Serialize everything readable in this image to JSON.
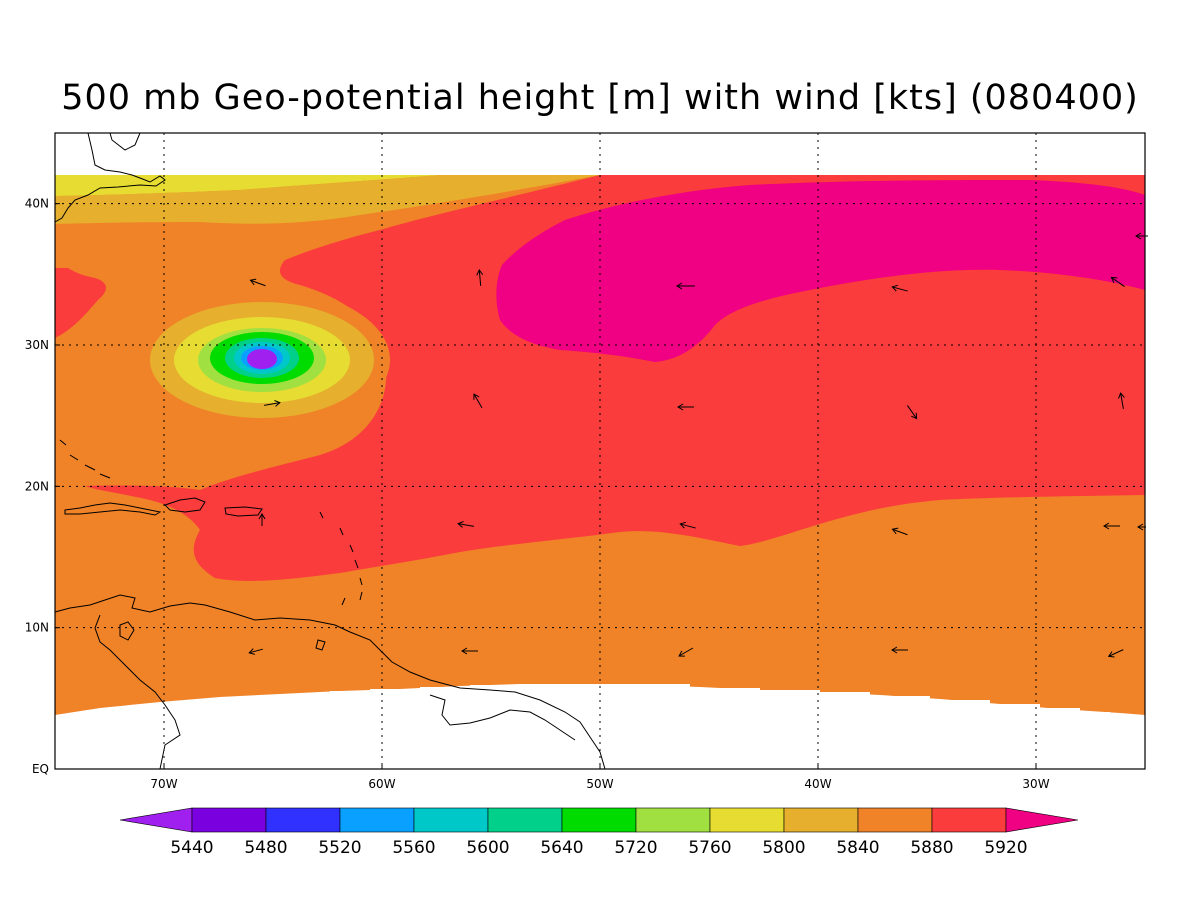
{
  "title": "500 mb Geo-potential height [m] with wind [kts] (080400)",
  "map": {
    "lat_labels": [
      "40N",
      "30N",
      "20N",
      "10N",
      "EQ"
    ],
    "lon_labels": [
      "70W",
      "60W",
      "50W",
      "40W",
      "30W"
    ],
    "lat_range": [
      0,
      45
    ],
    "lon_range": [
      -75,
      -25
    ]
  },
  "colorbar": {
    "levels": [
      "5440",
      "5480",
      "5520",
      "5560",
      "5600",
      "5640",
      "5720",
      "5760",
      "5800",
      "5840",
      "5880",
      "5920"
    ],
    "colors": [
      "#a020f0",
      "#7a00e0",
      "#3030ff",
      "#0aa0ff",
      "#00c8c8",
      "#00d08a",
      "#00dc00",
      "#a0e040",
      "#e6dc32",
      "#e6af2d",
      "#f08228",
      "#fa3c3c",
      "#f00082"
    ]
  },
  "fill_colors": {
    "c5800": "#e6dc32",
    "c5840": "#e6af2d",
    "c5880": "#f08228",
    "c5920": "#fa3c3c",
    "c5960": "#f00082",
    "c5760": "#a0e040",
    "c5720": "#00dc00",
    "c5640": "#00d08a",
    "c5600": "#00c8c8",
    "c5560": "#0aa0ff",
    "c5440": "#a020f0"
  },
  "icons": {
    "wind": "wind-arrow-icon"
  }
}
